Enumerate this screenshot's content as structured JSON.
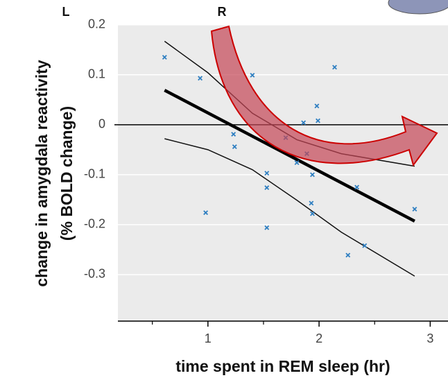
{
  "header": {
    "left": "L",
    "right": "R"
  },
  "chart_data": {
    "type": "scatter",
    "xlabel": "time spent in REM sleep (hr)",
    "ylabel": [
      "change in amygdala reactivity",
      "(% BOLD change)"
    ],
    "xlim": [
      0.19,
      3.16
    ],
    "ylim": [
      -0.393,
      0.201
    ],
    "xticks": [
      1,
      2,
      3
    ],
    "xminorticks": [
      0.5,
      1.5,
      2.5
    ],
    "yticks": [
      0.2,
      0.1,
      0,
      -0.1,
      -0.2,
      -0.3
    ],
    "grid": true,
    "zero_line": true,
    "points": {
      "color": "#2f7fc1",
      "x": [
        0.61,
        0.93,
        1.4,
        2.14,
        1.98,
        1.99,
        1.86,
        1.23,
        1.24,
        1.7,
        1.89,
        1.8,
        1.94,
        1.53,
        1.53,
        0.98,
        1.53,
        1.93,
        1.94,
        2.34,
        2.41,
        2.26,
        2.86
      ],
      "values": [
        0.135,
        0.093,
        0.099,
        0.115,
        0.0375,
        0.008,
        0.004,
        -0.019,
        -0.044,
        -0.026,
        -0.058,
        -0.076,
        -0.1,
        -0.097,
        -0.126,
        -0.176,
        -0.206,
        -0.157,
        -0.178,
        -0.125,
        -0.242,
        -0.261,
        -0.169
      ]
    },
    "lines": [
      {
        "color": "#000",
        "width": 4.5,
        "x": [
          0.61,
          2.86
        ],
        "values": [
          0.069,
          -0.193
        ]
      },
      {
        "color": "#111",
        "width": 1.5,
        "x": [
          0.61,
          1.0,
          1.4,
          1.8,
          2.2,
          2.86
        ],
        "values": [
          0.167,
          0.104,
          0.023,
          -0.03,
          -0.058,
          -0.083
        ]
      },
      {
        "color": "#111",
        "width": 1.5,
        "x": [
          0.61,
          1.0,
          1.4,
          1.8,
          2.2,
          2.86
        ],
        "values": [
          -0.028,
          -0.05,
          -0.09,
          -0.151,
          -0.215,
          -0.303
        ]
      }
    ]
  }
}
